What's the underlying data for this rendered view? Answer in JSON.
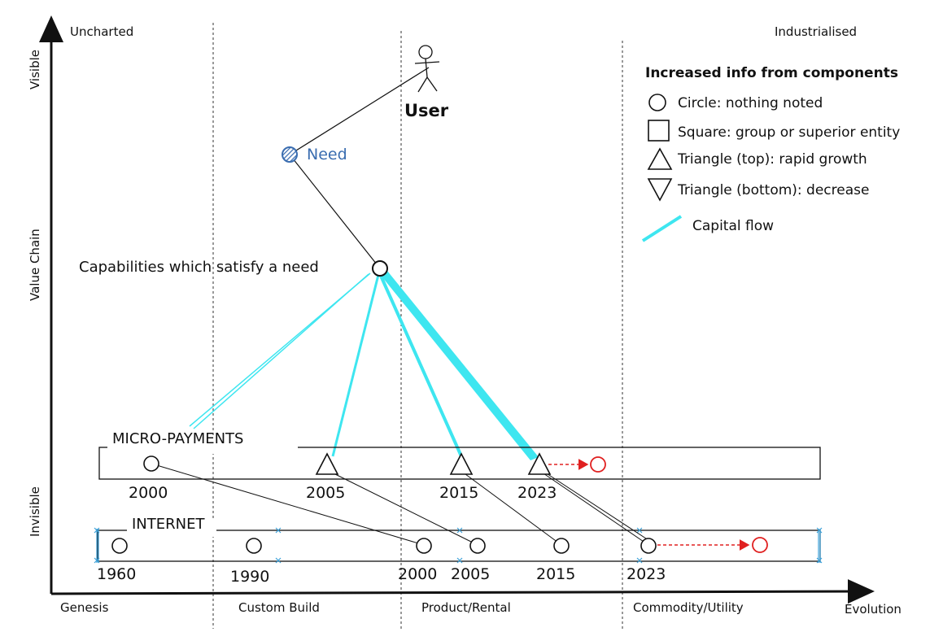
{
  "map": {
    "top_left_label": "Uncharted",
    "top_right_label": "Industrialised",
    "y_axis": {
      "top": "Visible",
      "middle": "Value Chain",
      "bottom": "Invisible"
    },
    "x_axis": {
      "stages": [
        "Genesis",
        "Custom Build",
        "Product/Rental",
        "Commodity/Utility"
      ],
      "end_label": "Evolution"
    },
    "user_label": "User",
    "need_label": "Need",
    "capabilities_label": "Capabilities which satisfy a need",
    "groups": [
      {
        "label": "MICRO-PAYMENTS",
        "years": [
          "2000",
          "2005",
          "2015",
          "2023"
        ]
      },
      {
        "label": "INTERNET",
        "years": [
          "1960",
          "1990",
          "2000",
          "2005",
          "2015",
          "2023"
        ]
      }
    ]
  },
  "legend": {
    "title": "Increased info from components",
    "items": [
      {
        "icon": "circle-icon",
        "label": "Circle: nothing noted"
      },
      {
        "icon": "square-icon",
        "label": "Square: group or superior entity"
      },
      {
        "icon": "triangle-up-icon",
        "label": "Triangle (top): rapid growth"
      },
      {
        "icon": "triangle-down-icon",
        "label": "Triangle (bottom): decrease"
      },
      {
        "icon": "capital-flow-icon",
        "label": "Capital flow"
      }
    ]
  },
  "colors": {
    "capital_flow": "#3ee6f0",
    "future_arrow": "#e02020",
    "need_blue": "#3a6db0",
    "ink": "#111111"
  }
}
